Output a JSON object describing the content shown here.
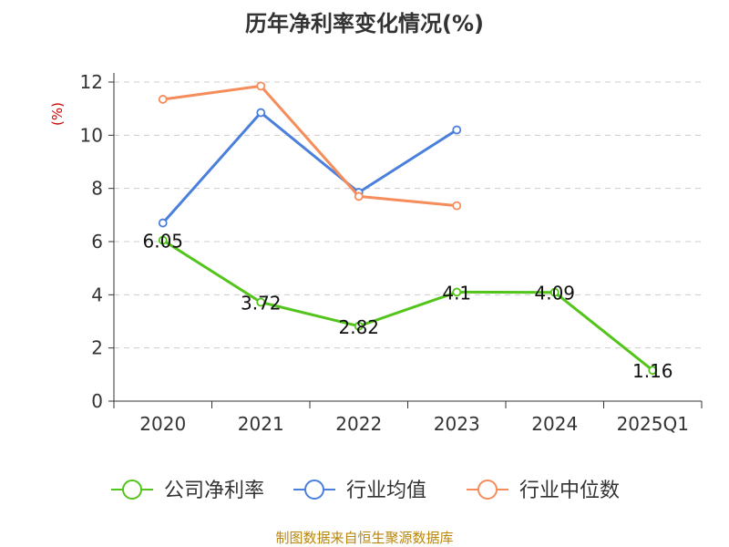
{
  "chart_data": {
    "type": "line",
    "title": "历年净利率变化情况(%)",
    "ylabel": "(%)",
    "xlabel": "",
    "categories": [
      "2020",
      "2021",
      "2022",
      "2023",
      "2024",
      "2025Q1"
    ],
    "yticks": [
      0,
      2,
      4,
      6,
      8,
      10,
      12
    ],
    "ylim": [
      0,
      12
    ],
    "grid": true,
    "legend_position": "bottom",
    "series": [
      {
        "name": "公司净利率",
        "color": "#52c41a",
        "values": [
          6.05,
          3.72,
          2.82,
          4.1,
          4.09,
          1.16
        ],
        "labels": [
          "6.05",
          "3.72",
          "2.82",
          "4.1",
          "4.09",
          "1.16"
        ]
      },
      {
        "name": "行业均值",
        "color": "#4a7fdc",
        "values": [
          6.7,
          10.85,
          7.85,
          10.2,
          null,
          null
        ]
      },
      {
        "name": "行业中位数",
        "color": "#f58c5a",
        "values": [
          11.35,
          11.85,
          7.7,
          7.35,
          null,
          null
        ]
      }
    ]
  },
  "footer": {
    "source": "制图数据来自恒生聚源数据库"
  }
}
